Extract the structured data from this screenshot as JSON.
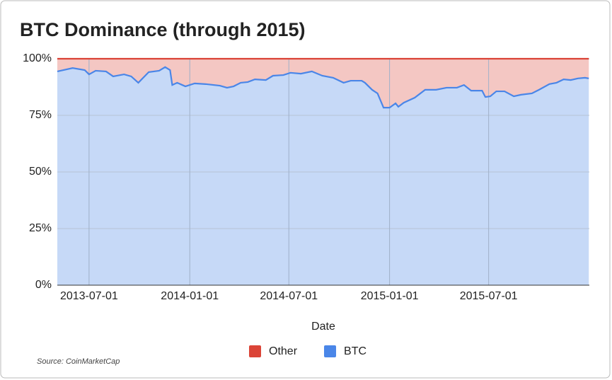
{
  "chart_data": {
    "type": "stacked_area",
    "title": "BTC Dominance (through 2015)",
    "x_label": "Date",
    "source": "Source: CoinMarketCap",
    "x": [
      "2013-05-04",
      "2013-06-01",
      "2013-06-23",
      "2013-07-01",
      "2013-07-13",
      "2013-08-01",
      "2013-08-14",
      "2013-09-03",
      "2013-09-16",
      "2013-09-29",
      "2013-10-18",
      "2013-11-06",
      "2013-11-17",
      "2013-11-26",
      "2013-11-30",
      "2013-12-09",
      "2013-12-24",
      "2014-01-10",
      "2014-01-30",
      "2014-02-25",
      "2014-03-10",
      "2014-03-22",
      "2014-04-04",
      "2014-04-17",
      "2014-04-30",
      "2014-05-20",
      "2014-06-02",
      "2014-06-21",
      "2014-07-04",
      "2014-07-23",
      "2014-08-12",
      "2014-08-31",
      "2014-09-20",
      "2014-10-09",
      "2014-10-22",
      "2014-11-11",
      "2014-11-17",
      "2014-11-30",
      "2014-12-10",
      "2014-12-21",
      "2015-01-01",
      "2015-01-12",
      "2015-01-17",
      "2015-01-27",
      "2015-02-16",
      "2015-03-07",
      "2015-03-27",
      "2015-04-15",
      "2015-05-04",
      "2015-05-17",
      "2015-05-30",
      "2015-06-19",
      "2015-06-25",
      "2015-07-04",
      "2015-07-15",
      "2015-07-30",
      "2015-08-16",
      "2015-08-29",
      "2015-09-18",
      "2015-10-01",
      "2015-10-20",
      "2015-11-02",
      "2015-11-15",
      "2015-11-28",
      "2015-12-11",
      "2015-12-24",
      "2015-12-31"
    ],
    "series": [
      {
        "name": "Other",
        "color": "#db4437",
        "fill": "#f4c7c3",
        "values": [
          5.6,
          4.1,
          5.0,
          6.9,
          5.3,
          5.6,
          7.8,
          6.9,
          7.8,
          10.6,
          5.9,
          5.3,
          3.7,
          5.0,
          11.6,
          10.6,
          12.2,
          10.9,
          11.2,
          11.9,
          12.8,
          12.2,
          10.6,
          10.3,
          9.1,
          9.4,
          7.5,
          7.2,
          6.2,
          6.6,
          5.6,
          7.5,
          8.4,
          10.6,
          9.7,
          9.7,
          10.6,
          13.7,
          15.3,
          21.6,
          21.6,
          19.7,
          21.2,
          19.4,
          17.2,
          13.7,
          13.7,
          12.8,
          12.8,
          11.6,
          14.1,
          14.1,
          16.9,
          16.6,
          14.4,
          14.4,
          16.6,
          15.9,
          15.3,
          13.7,
          11.2,
          10.6,
          9.1,
          9.4,
          8.7,
          8.4,
          8.7
        ]
      },
      {
        "name": "BTC",
        "color": "#4a86e8",
        "fill": "#c6d9f7",
        "values": [
          94.4,
          95.9,
          95.0,
          93.1,
          94.7,
          94.4,
          92.2,
          93.1,
          92.2,
          89.4,
          94.1,
          94.7,
          96.3,
          95.0,
          88.4,
          89.4,
          87.8,
          89.1,
          88.8,
          88.1,
          87.2,
          87.8,
          89.4,
          89.7,
          90.9,
          90.6,
          92.5,
          92.8,
          93.8,
          93.4,
          94.4,
          92.5,
          91.6,
          89.4,
          90.3,
          90.3,
          89.4,
          86.3,
          84.7,
          78.4,
          78.4,
          80.3,
          78.8,
          80.6,
          82.8,
          86.3,
          86.3,
          87.2,
          87.2,
          88.4,
          85.9,
          85.9,
          83.1,
          83.4,
          85.6,
          85.6,
          83.4,
          84.1,
          84.7,
          86.3,
          88.8,
          89.4,
          90.9,
          90.6,
          91.3,
          91.6,
          91.3
        ]
      }
    ],
    "xlim": [
      "2013-05-04",
      "2016-01-01"
    ],
    "xticks": [
      "2013-07-01",
      "2014-01-01",
      "2014-07-01",
      "2015-01-01",
      "2015-07-01"
    ],
    "ylim": [
      0,
      100
    ],
    "yticks": [
      {
        "value": 0,
        "label": "0%"
      },
      {
        "value": 25,
        "label": "25%"
      },
      {
        "value": 50,
        "label": "50%"
      },
      {
        "value": 75,
        "label": "75%"
      },
      {
        "value": 100,
        "label": "100%"
      }
    ],
    "grid": true,
    "legend": "bottom"
  }
}
